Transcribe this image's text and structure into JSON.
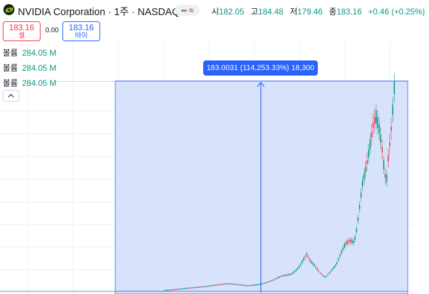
{
  "header": {
    "title": "NVIDIA Corporation · 1주 · NASDAQ",
    "compare_wave": "≈",
    "ohlc": [
      {
        "label": "시",
        "value": "182.05"
      },
      {
        "label": "고",
        "value": "184.48"
      },
      {
        "label": "저",
        "value": "179.46"
      },
      {
        "label": "종",
        "value": "183.16"
      }
    ],
    "change": "+0.46 (+0.25%)"
  },
  "trade": {
    "sell_price": "183.16",
    "sell_label": "셀",
    "spread": "0.00",
    "buy_price": "183.16",
    "buy_label": "바이"
  },
  "volume_rows": [
    {
      "label": "볼륨",
      "value": "284.05 M"
    },
    {
      "label": "볼륨",
      "value": "284.05 M"
    },
    {
      "label": "볼륨",
      "value": "284.05 M"
    }
  ],
  "measure": {
    "label": "183.0031 (114,253.33%) 18,300"
  },
  "colors": {
    "up": "#089981",
    "down": "#f23645",
    "accent": "#2962ff",
    "measure_fill": "#d4e0fb"
  }
}
